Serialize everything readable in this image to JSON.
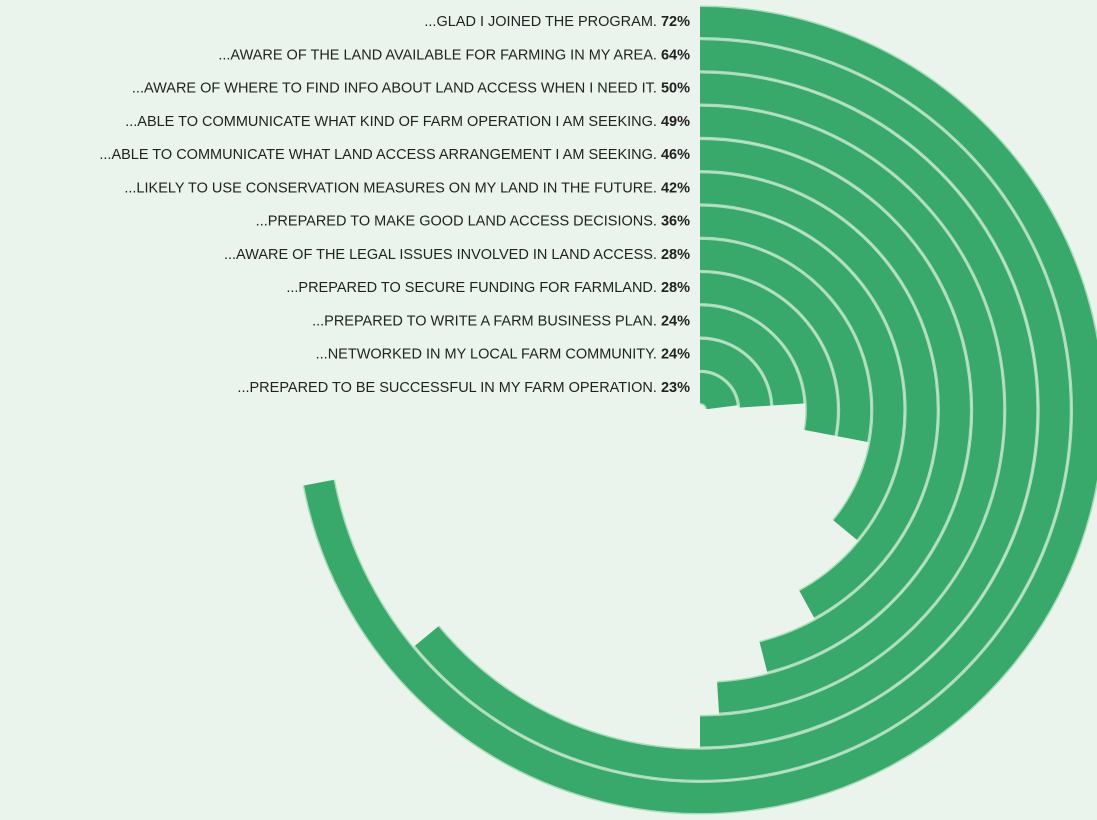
{
  "chart_data": {
    "type": "radial_bar",
    "categories": [
      "...GLAD I JOINED THE PROGRAM.",
      "...AWARE OF THE LAND AVAILABLE FOR FARMING IN MY AREA.",
      "...AWARE OF WHERE TO FIND INFO ABOUT LAND ACCESS WHEN I NEED IT.",
      "...ABLE TO COMMUNICATE WHAT KIND OF FARM OPERATION I AM SEEKING.",
      "...ABLE TO COMMUNICATE WHAT LAND ACCESS ARRANGEMENT I AM SEEKING.",
      "...LIKELY TO USE CONSERVATION MEASURES ON MY LAND IN THE FUTURE.",
      "...PREPARED TO MAKE GOOD LAND ACCESS DECISIONS.",
      "...AWARE OF THE LEGAL ISSUES INVOLVED IN LAND ACCESS.",
      "...PREPARED TO SECURE FUNDING FOR FARMLAND.",
      "...PREPARED TO WRITE A FARM BUSINESS PLAN.",
      "...NETWORKED IN MY LOCAL FARM COMMUNITY.",
      "...PREPARED TO BE SUCCESSFUL IN MY FARM OPERATION."
    ],
    "values": [
      72,
      64,
      50,
      49,
      46,
      42,
      36,
      28,
      28,
      24,
      24,
      23
    ],
    "value_labels": [
      "72%",
      "64%",
      "50%",
      "49%",
      "46%",
      "42%",
      "36%",
      "28%",
      "28%",
      "24%",
      "24%",
      "23%"
    ],
    "color": "#38a96b",
    "ylim": [
      0,
      100
    ]
  }
}
